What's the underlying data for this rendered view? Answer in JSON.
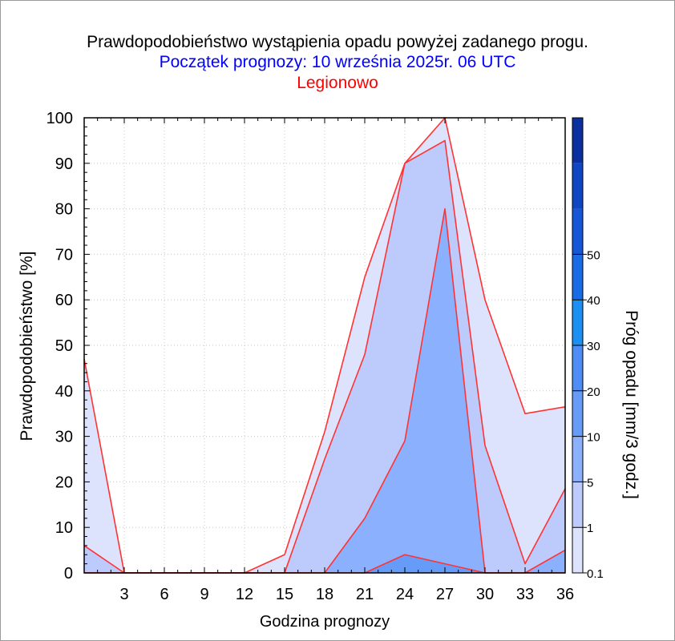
{
  "chart_data": {
    "type": "area",
    "title": "Prawdopodobieństwo wystąpienia opadu powyżej zadanego progu.",
    "subtitle": "Początek prognozy: 10 września 2025r. 06 UTC",
    "location": "Legionowo",
    "xlabel": "Godzina prognozy",
    "ylabel": "Prawdopodobieństwo [%]",
    "xlim": [
      0,
      36
    ],
    "ylim": [
      0,
      100
    ],
    "xticks": [
      3,
      6,
      9,
      12,
      15,
      18,
      21,
      24,
      27,
      30,
      33,
      36
    ],
    "yticks": [
      0,
      10,
      20,
      30,
      40,
      50,
      60,
      70,
      80,
      90,
      100
    ],
    "grid": true,
    "x": [
      0,
      3,
      6,
      9,
      12,
      15,
      18,
      21,
      24,
      27,
      30,
      33,
      36
    ],
    "series": [
      {
        "name": "0.1",
        "color": "#dde3fc",
        "values": [
          47,
          0,
          0,
          0,
          0,
          4,
          31,
          65,
          90,
          100,
          60,
          35,
          36.5
        ]
      },
      {
        "name": "1",
        "color": "#bccbfb",
        "values": [
          6,
          0,
          0,
          0,
          0,
          0,
          25,
          48,
          90,
          95,
          28,
          2,
          18.5
        ]
      },
      {
        "name": "5",
        "color": "#8bb0fe",
        "values": [
          0,
          0,
          0,
          0,
          0,
          0,
          0,
          12,
          29,
          80,
          0,
          0,
          5
        ]
      },
      {
        "name": "10",
        "color": "#669bf7",
        "values": [
          0,
          0,
          0,
          0,
          0,
          0,
          0,
          0,
          4,
          2,
          0,
          0,
          0
        ]
      }
    ],
    "line_color": "#ff3333",
    "colorbar": {
      "label": "Próg opadu [mm/3 godz.]",
      "ticks": [
        "0.1",
        "1",
        "5",
        "10",
        "20",
        "30",
        "40",
        "50"
      ],
      "colors": [
        "#dde3fc",
        "#bccbfb",
        "#8bb0fe",
        "#669bf7",
        "#4e8df5",
        "#1c90f2",
        "#1a6ce6",
        "#1557d8",
        "#0e46c4",
        "#0a30a0"
      ]
    }
  }
}
